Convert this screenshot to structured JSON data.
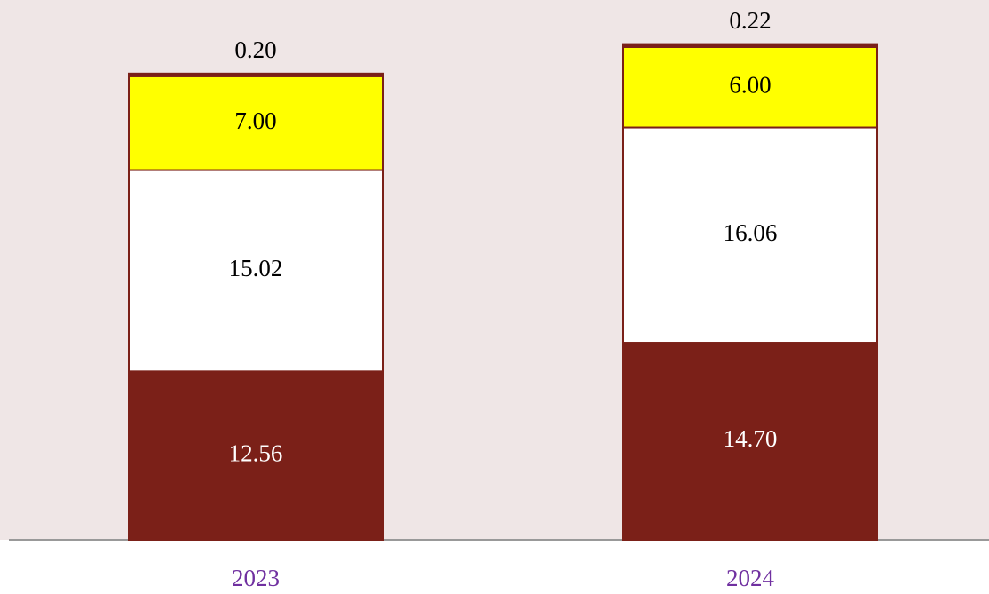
{
  "chart_data": {
    "type": "stacked_bar",
    "categories": [
      "2023",
      "2024"
    ],
    "series": [
      {
        "color": "#7b2018",
        "values": [
          12.56,
          14.7
        ],
        "value_labels": [
          "12.56",
          "14.70"
        ]
      },
      {
        "color": "#ffffff",
        "values": [
          15.02,
          16.06
        ],
        "value_labels": [
          "15.02",
          "16.06"
        ]
      },
      {
        "color": "#ffff00",
        "values": [
          7,
          6
        ],
        "value_labels": [
          "7.00",
          "6.00"
        ]
      },
      {
        "color": "#7b2018",
        "values": [
          0.2,
          0.22
        ],
        "value_labels": [
          "0.20",
          "0.22"
        ]
      }
    ],
    "ylim": [
      0,
      40
    ],
    "category_label_color": "#7030a0",
    "background": "#efe6e6"
  }
}
